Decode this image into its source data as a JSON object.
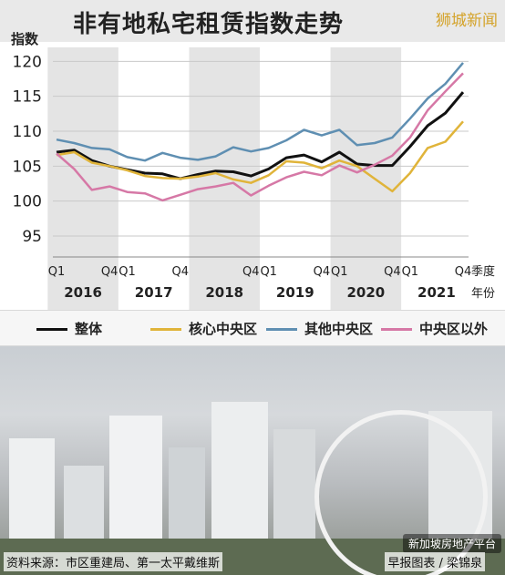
{
  "header": {
    "title": "非有地私宅租赁指数走势",
    "brand": "狮城新闻"
  },
  "axis": {
    "ylabel": "指数",
    "xlabel_quarter": "季度",
    "xlabel_year": "年份"
  },
  "footer": {
    "source": "资料来源：市区重建局、第一太平戴维斯",
    "credit": "早报图表 / 梁锦泉",
    "wechat": "新加坡房地产平台"
  },
  "chart_data": {
    "type": "line",
    "title": "非有地私宅租赁指数走势",
    "ylabel": "指数",
    "ylim": [
      92,
      122
    ],
    "yticks": [
      95,
      100,
      105,
      110,
      115,
      120
    ],
    "x": [
      "2016Q1",
      "2016Q2",
      "2016Q3",
      "2016Q4",
      "2017Q1",
      "2017Q2",
      "2017Q3",
      "2017Q4",
      "2018Q1",
      "2018Q2",
      "2018Q3",
      "2018Q4",
      "2019Q1",
      "2019Q2",
      "2019Q3",
      "2019Q4",
      "2020Q1",
      "2020Q2",
      "2020Q3",
      "2020Q4",
      "2021Q1",
      "2021Q2",
      "2021Q3",
      "2021Q4"
    ],
    "quarter_ticks": [
      {
        "i": 0,
        "label": "Q1"
      },
      {
        "i": 3,
        "label": "Q4"
      },
      {
        "i": 4,
        "label": "Q1"
      },
      {
        "i": 7,
        "label": "Q4"
      },
      {
        "i": 11,
        "label": "Q4"
      },
      {
        "i": 12,
        "label": "Q1"
      },
      {
        "i": 15,
        "label": "Q4"
      },
      {
        "i": 16,
        "label": "Q1"
      },
      {
        "i": 19,
        "label": "Q4"
      },
      {
        "i": 20,
        "label": "Q1"
      },
      {
        "i": 23,
        "label": "Q4"
      }
    ],
    "years": [
      "2016",
      "2017",
      "2018",
      "2019",
      "2020",
      "2021"
    ],
    "grid": true,
    "series": [
      {
        "name": "整体",
        "color": "#111111",
        "values": [
          107.0,
          107.3,
          105.8,
          105.0,
          104.5,
          104.0,
          103.9,
          103.2,
          103.8,
          104.3,
          104.2,
          103.6,
          104.6,
          106.2,
          106.6,
          105.6,
          107.0,
          105.3,
          105.1,
          105.1,
          107.8,
          110.8,
          112.6,
          115.6
        ]
      },
      {
        "name": "核心中央区",
        "color": "#e0b43a",
        "values": [
          106.6,
          107.0,
          105.5,
          105.0,
          104.4,
          103.6,
          103.3,
          103.2,
          103.5,
          104.0,
          103.1,
          102.6,
          103.7,
          105.7,
          105.5,
          104.7,
          105.8,
          105.0,
          103.2,
          101.4,
          104.0,
          107.6,
          108.5,
          111.4
        ]
      },
      {
        "name": "其他中央区",
        "color": "#5f8fb2",
        "values": [
          108.8,
          108.3,
          107.6,
          107.4,
          106.3,
          105.8,
          106.9,
          106.2,
          105.9,
          106.4,
          107.7,
          107.1,
          107.6,
          108.7,
          110.2,
          109.4,
          110.2,
          108.0,
          108.3,
          109.1,
          111.8,
          114.7,
          116.8,
          119.8
        ]
      },
      {
        "name": "中央区以外",
        "color": "#d678a6",
        "values": [
          106.8,
          104.6,
          101.6,
          102.1,
          101.3,
          101.1,
          100.1,
          100.9,
          101.7,
          102.1,
          102.6,
          100.8,
          102.2,
          103.4,
          104.2,
          103.7,
          105.1,
          104.1,
          105.2,
          106.5,
          109.1,
          113.0,
          115.7,
          118.3
        ]
      }
    ]
  }
}
